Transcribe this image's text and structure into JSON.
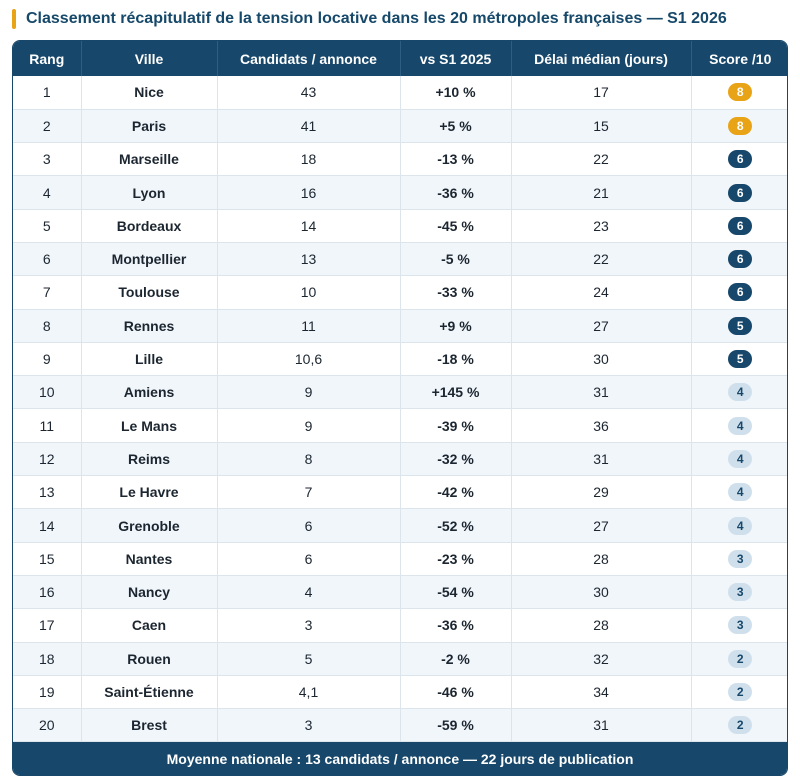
{
  "title": "Classement récapitulatif de la tension locative dans les 20 métropoles françaises — S1 2026",
  "accent_color": "#e8a317",
  "header_color": "#17476a",
  "columns": [
    "Rang",
    "Ville",
    "Candidats / annonce",
    "vs S1 2025",
    "Délai médian (jours)",
    "Score /10"
  ],
  "rows": [
    {
      "rank": "1",
      "city": "Nice",
      "candidates": "43",
      "delta": "+10 %",
      "delay": "17",
      "score": "8"
    },
    {
      "rank": "2",
      "city": "Paris",
      "candidates": "41",
      "delta": "+5 %",
      "delay": "15",
      "score": "8"
    },
    {
      "rank": "3",
      "city": "Marseille",
      "candidates": "18",
      "delta": "-13 %",
      "delay": "22",
      "score": "6"
    },
    {
      "rank": "4",
      "city": "Lyon",
      "candidates": "16",
      "delta": "-36 %",
      "delay": "21",
      "score": "6"
    },
    {
      "rank": "5",
      "city": "Bordeaux",
      "candidates": "14",
      "delta": "-45 %",
      "delay": "23",
      "score": "6"
    },
    {
      "rank": "6",
      "city": "Montpellier",
      "candidates": "13",
      "delta": "-5 %",
      "delay": "22",
      "score": "6"
    },
    {
      "rank": "7",
      "city": "Toulouse",
      "candidates": "10",
      "delta": "-33 %",
      "delay": "24",
      "score": "6"
    },
    {
      "rank": "8",
      "city": "Rennes",
      "candidates": "11",
      "delta": "+9 %",
      "delay": "27",
      "score": "5"
    },
    {
      "rank": "9",
      "city": "Lille",
      "candidates": "10,6",
      "delta": "-18 %",
      "delay": "30",
      "score": "5"
    },
    {
      "rank": "10",
      "city": "Amiens",
      "candidates": "9",
      "delta": "+145 %",
      "delay": "31",
      "score": "4"
    },
    {
      "rank": "11",
      "city": "Le Mans",
      "candidates": "9",
      "delta": "-39 %",
      "delay": "36",
      "score": "4"
    },
    {
      "rank": "12",
      "city": "Reims",
      "candidates": "8",
      "delta": "-32 %",
      "delay": "31",
      "score": "4"
    },
    {
      "rank": "13",
      "city": "Le Havre",
      "candidates": "7",
      "delta": "-42 %",
      "delay": "29",
      "score": "4"
    },
    {
      "rank": "14",
      "city": "Grenoble",
      "candidates": "6",
      "delta": "-52 %",
      "delay": "27",
      "score": "4"
    },
    {
      "rank": "15",
      "city": "Nantes",
      "candidates": "6",
      "delta": "-23 %",
      "delay": "28",
      "score": "3"
    },
    {
      "rank": "16",
      "city": "Nancy",
      "candidates": "4",
      "delta": "-54 %",
      "delay": "30",
      "score": "3"
    },
    {
      "rank": "17",
      "city": "Caen",
      "candidates": "3",
      "delta": "-36 %",
      "delay": "28",
      "score": "3"
    },
    {
      "rank": "18",
      "city": "Rouen",
      "candidates": "5",
      "delta": "-2 %",
      "delay": "32",
      "score": "2"
    },
    {
      "rank": "19",
      "city": "Saint-Étienne",
      "candidates": "4,1",
      "delta": "-46 %",
      "delay": "34",
      "score": "2"
    },
    {
      "rank": "20",
      "city": "Brest",
      "candidates": "3",
      "delta": "-59 %",
      "delay": "31",
      "score": "2"
    }
  ],
  "footer": "Moyenne nationale : 13 candidats / annonce — 22 jours de publication"
}
